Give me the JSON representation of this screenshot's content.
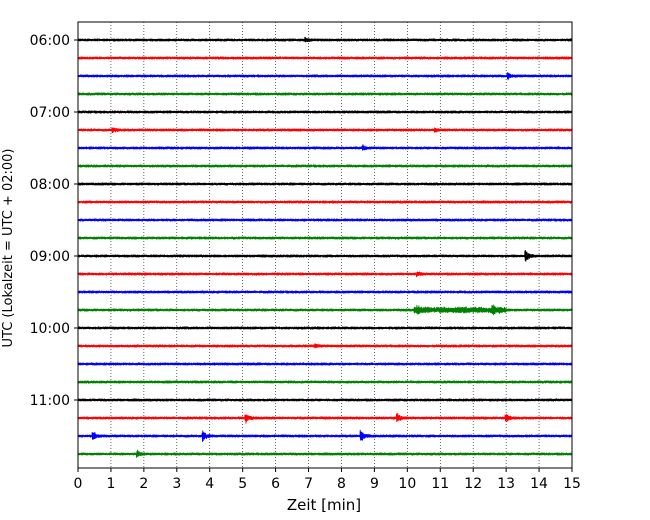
{
  "chart_data": {
    "type": "line",
    "title": "",
    "xlabel": "Zeit  [min]",
    "ylabel": "UTC (Lokalzeit = UTC + 02:00)",
    "xlim": [
      0,
      15
    ],
    "x_ticks": [
      "0",
      "1",
      "2",
      "3",
      "4",
      "5",
      "6",
      "7",
      "8",
      "9",
      "10",
      "11",
      "12",
      "13",
      "14",
      "15"
    ],
    "y_ticks": [
      "06:00",
      "07:00",
      "08:00",
      "09:00",
      "10:00",
      "11:00"
    ],
    "grid": "vertical dotted",
    "trace_start": "06:00",
    "trace_interval_minutes": 15,
    "trace_count": 24,
    "colors": [
      "#000000",
      "#ff0000",
      "#0000ff",
      "#008000"
    ],
    "events": [
      {
        "trace": 0,
        "minute": 6.9,
        "amplitude": 0.4
      },
      {
        "trace": 2,
        "minute": 13.05,
        "amplitude": 0.6
      },
      {
        "trace": 5,
        "minute": 1.05,
        "amplitude": 0.5
      },
      {
        "trace": 5,
        "minute": 10.85,
        "amplitude": 0.3
      },
      {
        "trace": 6,
        "minute": 8.65,
        "amplitude": 0.4
      },
      {
        "trace": 12,
        "minute": 13.6,
        "amplitude": 1.1
      },
      {
        "trace": 13,
        "minute": 10.3,
        "amplitude": 0.4
      },
      {
        "trace": 15,
        "minute": 10.3,
        "amplitude": 0.5
      },
      {
        "trace": 15,
        "minute": 12.6,
        "amplitude": 0.6
      },
      {
        "trace": 17,
        "minute": 7.2,
        "amplitude": 0.3
      },
      {
        "trace": 21,
        "minute": 5.1,
        "amplitude": 0.9
      },
      {
        "trace": 21,
        "minute": 9.7,
        "amplitude": 0.8
      },
      {
        "trace": 21,
        "minute": 13.0,
        "amplitude": 0.7
      },
      {
        "trace": 22,
        "minute": 0.45,
        "amplitude": 1.0
      },
      {
        "trace": 22,
        "minute": 3.8,
        "amplitude": 0.9
      },
      {
        "trace": 22,
        "minute": 8.6,
        "amplitude": 0.9
      },
      {
        "trace": 23,
        "minute": 1.8,
        "amplitude": 0.6
      }
    ],
    "noisy_segments": [
      {
        "trace": 15,
        "from": 10.2,
        "to": 13.0,
        "amplitude": 0.35
      }
    ]
  }
}
